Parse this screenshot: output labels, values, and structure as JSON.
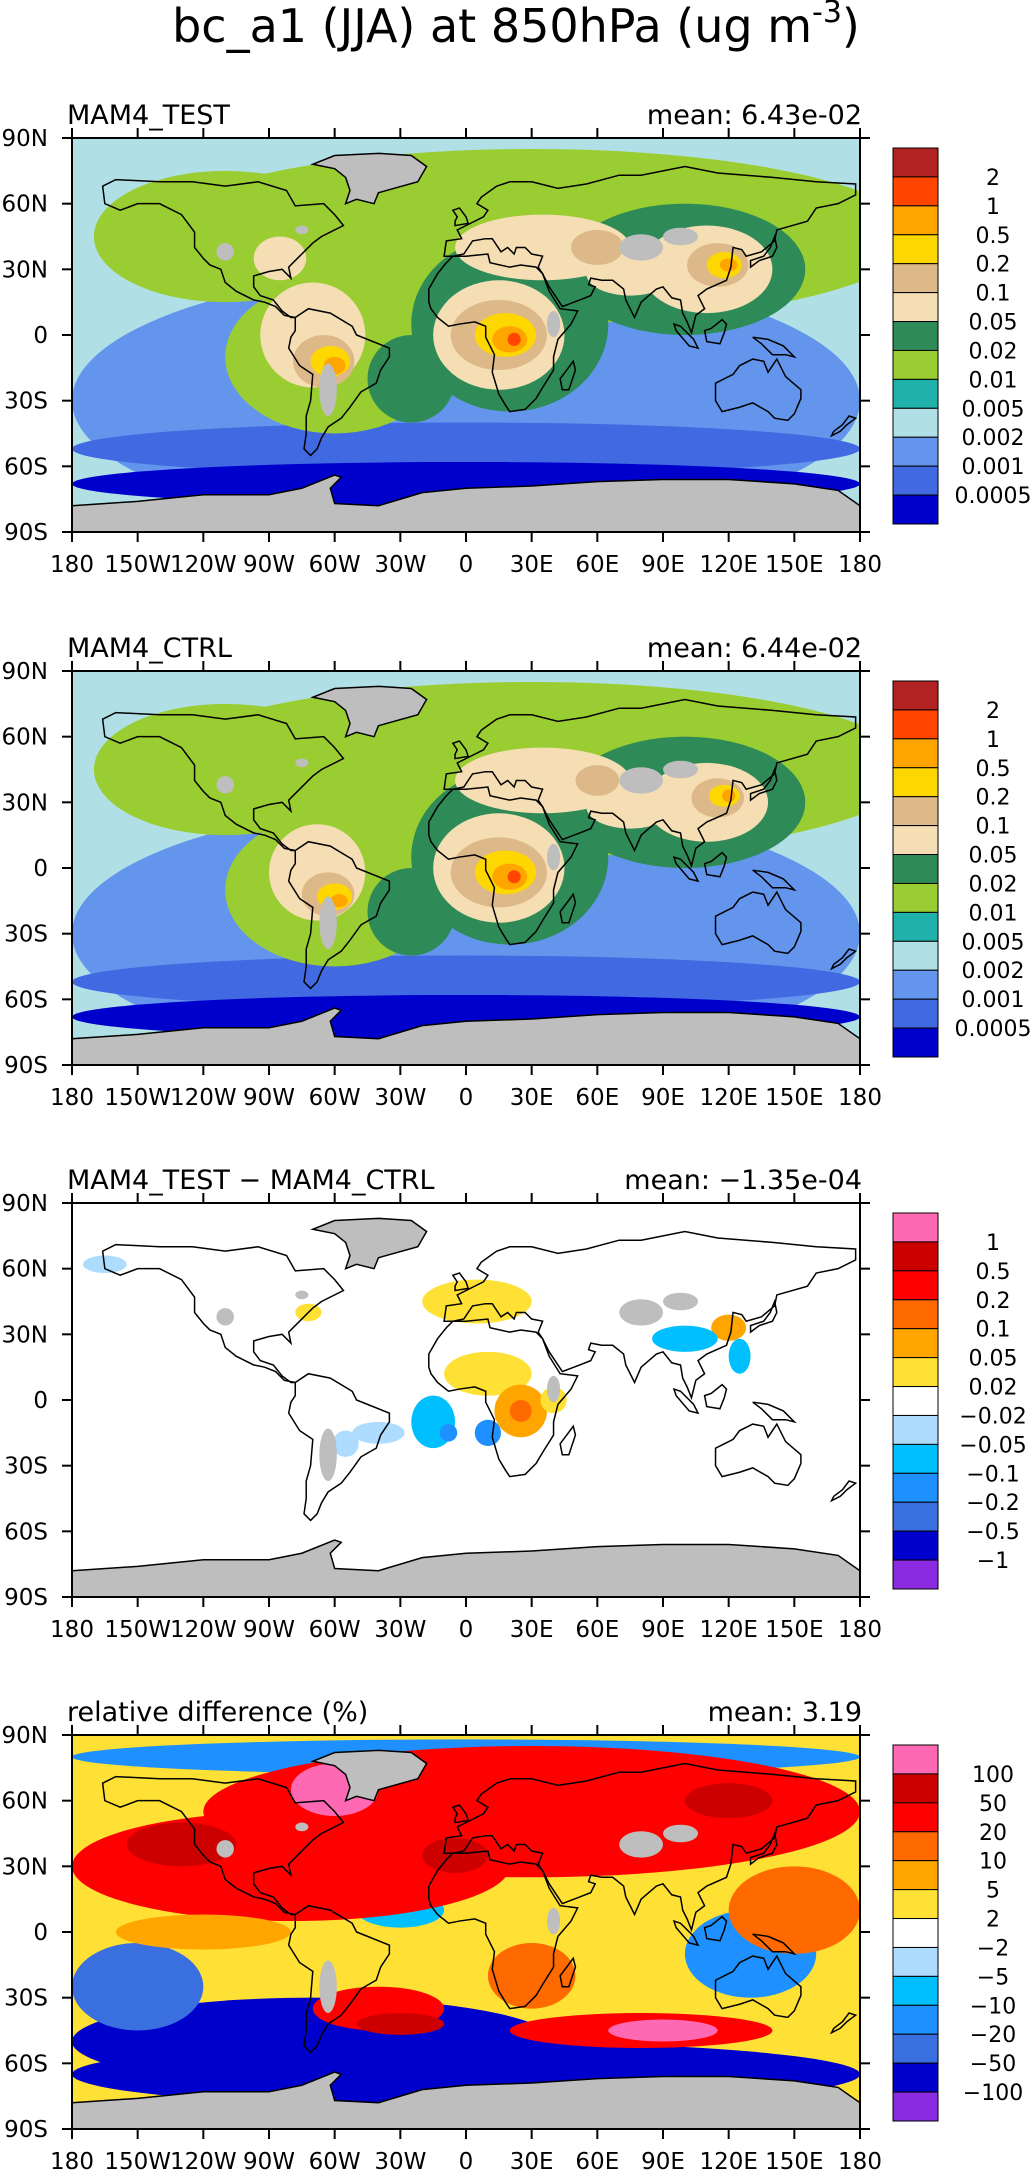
{
  "figure_title": "bc_a1 (JJA) at 850hPa (ug m",
  "figure_title_sup": "-3",
  "figure_title_end": ")",
  "colors": {
    "land_gray": "#bebebe",
    "coast": "#000000"
  },
  "chart_data": [
    {
      "type": "heatmap",
      "name": "MAM4_TEST",
      "title": "MAM4_TEST",
      "mean_label": "mean: 6.43e-02",
      "mean_value": 0.0643,
      "xlim": [
        -180,
        180
      ],
      "ylim": [
        -90,
        90
      ],
      "x_ticks": [
        "180",
        "150W",
        "120W",
        "90W",
        "60W",
        "30W",
        "0",
        "30E",
        "60E",
        "90E",
        "120E",
        "150E",
        "180"
      ],
      "y_ticks": [
        "90N",
        "60N",
        "30N",
        "0",
        "30S",
        "60S",
        "90S"
      ],
      "colorbar": {
        "labels": [
          "2",
          "1",
          "0.5",
          "0.2",
          "0.1",
          "0.05",
          "0.02",
          "0.01",
          "0.005",
          "0.002",
          "0.001",
          "0.0005"
        ],
        "colors": [
          "#b22222",
          "#ff4500",
          "#ffa500",
          "#ffd700",
          "#ddb989",
          "#f5deb3",
          "#2e8b57",
          "#9acd32",
          "#20b2aa",
          "#b0e0e6",
          "#6495ed",
          "#4169e1",
          "#0000cd"
        ]
      }
    },
    {
      "type": "heatmap",
      "name": "MAM4_CTRL",
      "title": "MAM4_CTRL",
      "mean_label": "mean: 6.44e-02",
      "mean_value": 0.0644,
      "xlim": [
        -180,
        180
      ],
      "ylim": [
        -90,
        90
      ],
      "x_ticks": [
        "180",
        "150W",
        "120W",
        "90W",
        "60W",
        "30W",
        "0",
        "30E",
        "60E",
        "90E",
        "120E",
        "150E",
        "180"
      ],
      "y_ticks": [
        "90N",
        "60N",
        "30N",
        "0",
        "30S",
        "60S",
        "90S"
      ],
      "colorbar": {
        "labels": [
          "2",
          "1",
          "0.5",
          "0.2",
          "0.1",
          "0.05",
          "0.02",
          "0.01",
          "0.005",
          "0.002",
          "0.001",
          "0.0005"
        ],
        "colors": [
          "#b22222",
          "#ff4500",
          "#ffa500",
          "#ffd700",
          "#ddb989",
          "#f5deb3",
          "#2e8b57",
          "#9acd32",
          "#20b2aa",
          "#b0e0e6",
          "#6495ed",
          "#4169e1",
          "#0000cd"
        ]
      }
    },
    {
      "type": "heatmap",
      "name": "difference",
      "title": "MAM4_TEST − MAM4_CTRL",
      "mean_label": "mean: −1.35e-04",
      "mean_value": -0.000135,
      "xlim": [
        -180,
        180
      ],
      "ylim": [
        -90,
        90
      ],
      "x_ticks": [
        "180",
        "150W",
        "120W",
        "90W",
        "60W",
        "30W",
        "0",
        "30E",
        "60E",
        "90E",
        "120E",
        "150E",
        "180"
      ],
      "y_ticks": [
        "90N",
        "60N",
        "30N",
        "0",
        "30S",
        "60S",
        "90S"
      ],
      "colorbar": {
        "labels": [
          "1",
          "0.5",
          "0.2",
          "0.1",
          "0.05",
          "0.02",
          "−0.02",
          "−0.05",
          "−0.1",
          "−0.2",
          "−0.5",
          "−1"
        ],
        "colors": [
          "#ff69b4",
          "#cd0000",
          "#ff0000",
          "#ff6a00",
          "#ffa500",
          "#ffe135",
          "#ffffff",
          "#aedcff",
          "#00bfff",
          "#1e90ff",
          "#3a6fe0",
          "#0000cd",
          "#8a2be2"
        ]
      }
    },
    {
      "type": "heatmap",
      "name": "relative-difference",
      "title": "relative difference (%)",
      "mean_label": "mean:   3.19",
      "mean_value": 3.19,
      "xlim": [
        -180,
        180
      ],
      "ylim": [
        -90,
        90
      ],
      "x_ticks": [
        "180",
        "150W",
        "120W",
        "90W",
        "60W",
        "30W",
        "0",
        "30E",
        "60E",
        "90E",
        "120E",
        "150E",
        "180"
      ],
      "y_ticks": [
        "90N",
        "60N",
        "30N",
        "0",
        "30S",
        "60S",
        "90S"
      ],
      "colorbar": {
        "labels": [
          "100",
          "50",
          "20",
          "10",
          "5",
          "2",
          "−2",
          "−5",
          "−10",
          "−20",
          "−50",
          "−100"
        ],
        "colors": [
          "#ff69b4",
          "#cd0000",
          "#ff0000",
          "#ff6a00",
          "#ffa500",
          "#ffe135",
          "#ffffff",
          "#aedcff",
          "#00bfff",
          "#1e90ff",
          "#3a6fe0",
          "#0000cd",
          "#8a2be2"
        ]
      }
    }
  ]
}
